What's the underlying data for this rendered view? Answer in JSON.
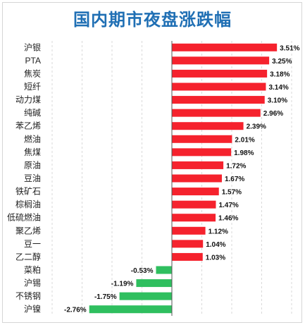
{
  "chart_data": {
    "type": "bar",
    "orientation": "horizontal",
    "title": "国内期市夜盘涨跌幅",
    "categories": [
      "沪银",
      "PTA",
      "焦炭",
      "短纤",
      "动力煤",
      "纯碱",
      "苯乙烯",
      "燃油",
      "焦煤",
      "原油",
      "豆油",
      "铁矿石",
      "棕榈油",
      "低硫燃油",
      "聚乙烯",
      "豆一",
      "乙二醇",
      "菜粕",
      "沪锡",
      "不锈钢",
      "沪镍"
    ],
    "values": [
      3.51,
      3.25,
      3.18,
      3.14,
      3.1,
      2.96,
      2.39,
      2.01,
      1.98,
      1.72,
      1.67,
      1.57,
      1.47,
      1.46,
      1.12,
      1.04,
      1.03,
      -0.53,
      -1.19,
      -1.75,
      -2.76
    ],
    "value_labels": [
      "3.51%",
      "3.25%",
      "3.18%",
      "3.14%",
      "3.10%",
      "2.96%",
      "2.39%",
      "2.01%",
      "1.98%",
      "1.72%",
      "1.67%",
      "1.57%",
      "1.47%",
      "1.46%",
      "1.12%",
      "1.04%",
      "1.03%",
      "-0.53%",
      "-1.19%",
      "-1.75%",
      "-2.76%"
    ],
    "xlim": [
      -4,
      4
    ],
    "grid": true,
    "legend": "none",
    "colors": {
      "positive": "#f5222d",
      "negative": "#2fbf5f",
      "title": "#1f6fb4",
      "grid": "#d9d9d9",
      "axis": "#555555"
    }
  }
}
